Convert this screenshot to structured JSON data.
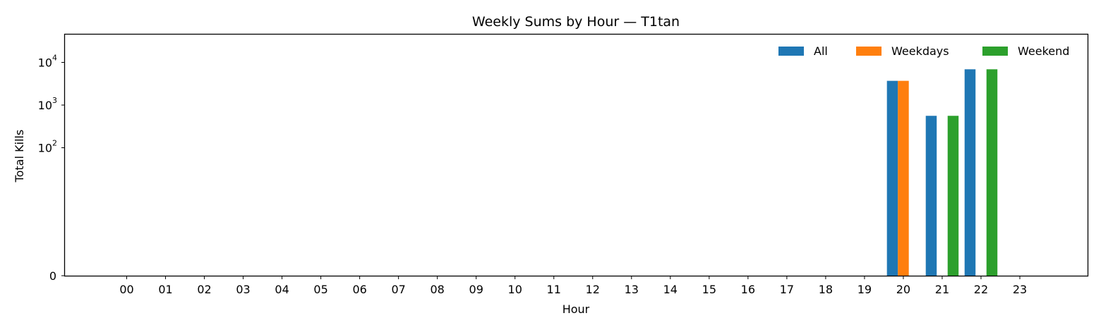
{
  "chart_data": {
    "type": "bar",
    "title": "Weekly Sums by Hour — T1tan",
    "xlabel": "Hour",
    "ylabel": "Total Kills",
    "yscale": "symlog",
    "y_tick_labels": [
      {
        "value": 0,
        "base": "0",
        "exp": ""
      },
      {
        "value": 100,
        "base": "10",
        "exp": "2"
      },
      {
        "value": 1000,
        "base": "10",
        "exp": "3"
      },
      {
        "value": 10000,
        "base": "10",
        "exp": "4"
      }
    ],
    "ylim": [
      0,
      45000
    ],
    "categories": [
      "00",
      "01",
      "02",
      "03",
      "04",
      "05",
      "06",
      "07",
      "08",
      "09",
      "10",
      "11",
      "12",
      "13",
      "14",
      "15",
      "16",
      "17",
      "18",
      "19",
      "20",
      "21",
      "22",
      "23"
    ],
    "series": [
      {
        "name": "All",
        "color": "#1f77b4",
        "values": [
          0,
          0,
          0,
          0,
          0,
          0,
          0,
          0,
          0,
          0,
          0,
          0,
          0,
          0,
          0,
          0,
          0,
          0,
          0,
          0,
          3700,
          560,
          6900,
          0
        ]
      },
      {
        "name": "Weekdays",
        "color": "#ff7f0e",
        "values": [
          0,
          0,
          0,
          0,
          0,
          0,
          0,
          0,
          0,
          0,
          0,
          0,
          0,
          0,
          0,
          0,
          0,
          0,
          0,
          0,
          3700,
          0,
          0,
          0
        ]
      },
      {
        "name": "Weekend",
        "color": "#2ca02c",
        "values": [
          0,
          0,
          0,
          0,
          0,
          0,
          0,
          0,
          0,
          0,
          0,
          0,
          0,
          0,
          0,
          0,
          0,
          0,
          0,
          0,
          0,
          560,
          6900,
          0
        ]
      }
    ],
    "legend_position": "top-right",
    "grid": false
  }
}
